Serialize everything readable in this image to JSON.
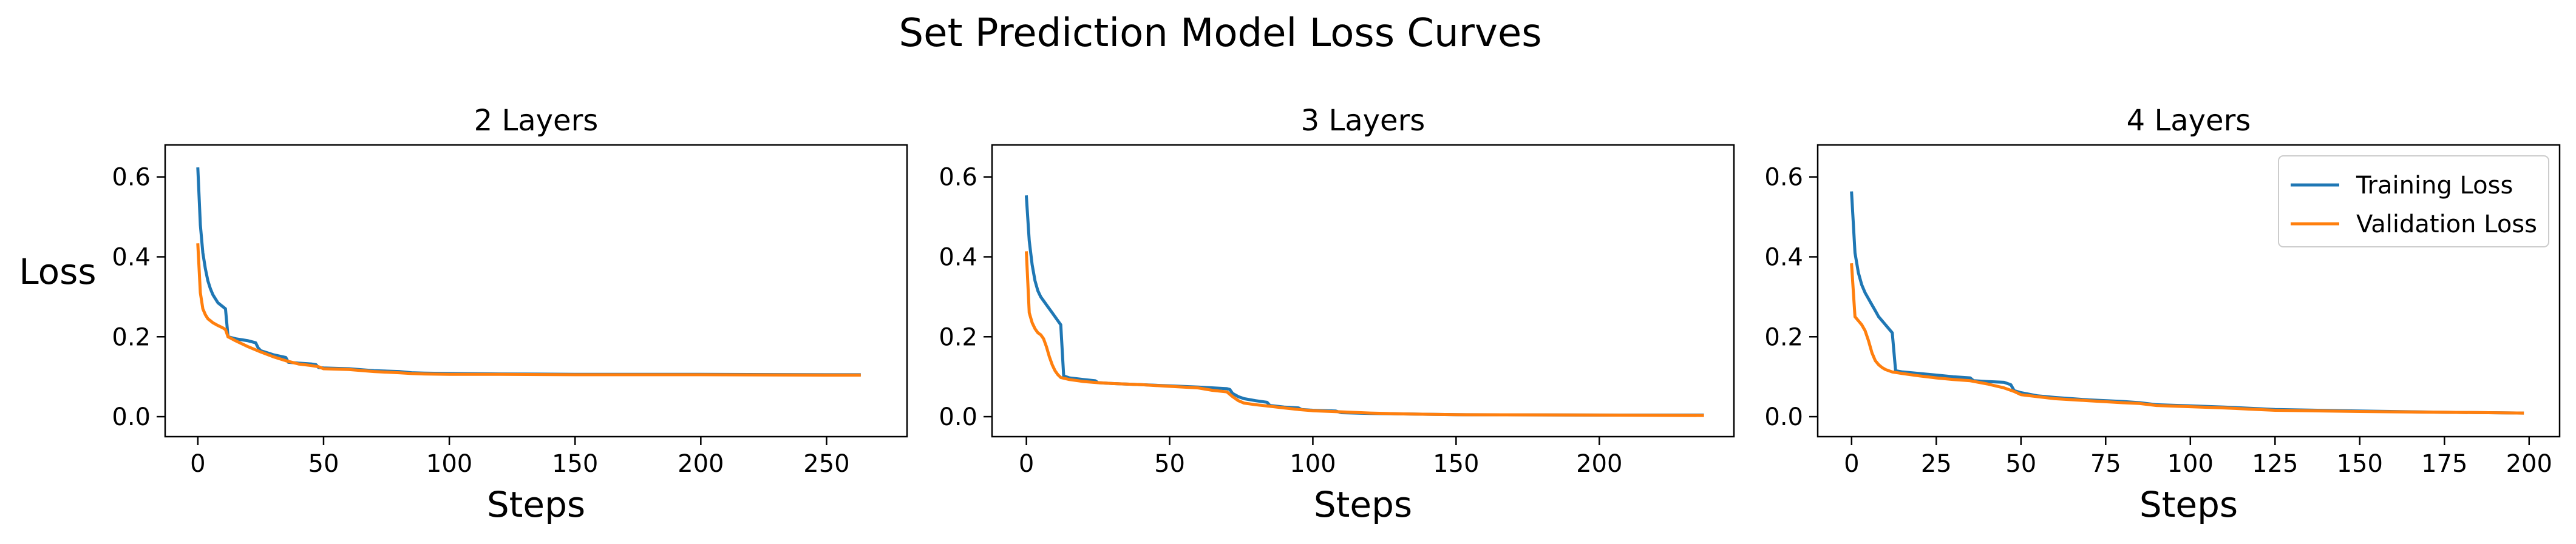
{
  "chart_data": {
    "title": "Set Prediction Model Loss Curves",
    "ylabel": "Loss",
    "series_colors": {
      "Training Loss": "#1f77b4",
      "Validation Loss": "#ff7f0e"
    },
    "legend": {
      "placement": "top-right",
      "panel": 2,
      "entries": [
        "Training Loss",
        "Validation Loss"
      ]
    },
    "panels": [
      {
        "type": "line",
        "title": "2 Layers",
        "xlabel": "Steps",
        "xlim": [
          -13,
          282
        ],
        "ylim": [
          -0.05,
          0.68
        ],
        "xticks": [
          0,
          50,
          100,
          150,
          200,
          250
        ],
        "yticks": [
          0.0,
          0.2,
          0.4,
          0.6
        ],
        "series": [
          {
            "name": "Training Loss",
            "x": [
              0,
              1,
              2,
              3,
              4,
              5,
              6,
              7,
              8,
              9,
              10,
              11,
              12,
              15,
              20,
              23,
              24,
              25,
              30,
              35,
              36,
              40,
              45,
              47,
              48,
              50,
              60,
              70,
              80,
              85,
              90,
              100,
              120,
              150,
              200,
              250,
              263
            ],
            "y": [
              0.62,
              0.48,
              0.41,
              0.37,
              0.34,
              0.32,
              0.305,
              0.295,
              0.285,
              0.28,
              0.275,
              0.27,
              0.2,
              0.195,
              0.19,
              0.185,
              0.172,
              0.165,
              0.155,
              0.148,
              0.136,
              0.134,
              0.132,
              0.13,
              0.123,
              0.122,
              0.12,
              0.115,
              0.113,
              0.11,
              0.109,
              0.108,
              0.107,
              0.106,
              0.106,
              0.105,
              0.105
            ]
          },
          {
            "name": "Validation Loss",
            "x": [
              0,
              1,
              2,
              3,
              4,
              5,
              6,
              8,
              10,
              11,
              12,
              15,
              20,
              25,
              30,
              35,
              40,
              45,
              48,
              50,
              60,
              70,
              80,
              85,
              90,
              100,
              120,
              150,
              200,
              250,
              263
            ],
            "y": [
              0.43,
              0.31,
              0.27,
              0.255,
              0.245,
              0.24,
              0.235,
              0.228,
              0.222,
              0.218,
              0.2,
              0.19,
              0.175,
              0.162,
              0.15,
              0.14,
              0.132,
              0.128,
              0.125,
              0.12,
              0.118,
              0.113,
              0.11,
              0.108,
              0.107,
              0.106,
              0.106,
              0.105,
              0.105,
              0.104,
              0.104
            ]
          }
        ]
      },
      {
        "type": "line",
        "title": "3 Layers",
        "xlabel": "Steps",
        "xlim": [
          -12,
          247
        ],
        "ylim": [
          -0.05,
          0.68
        ],
        "xticks": [
          0,
          50,
          100,
          150,
          200
        ],
        "yticks": [
          0.0,
          0.2,
          0.4,
          0.6
        ],
        "series": [
          {
            "name": "Training Loss",
            "x": [
              0,
              1,
              2,
              3,
              4,
              5,
              6,
              7,
              8,
              9,
              10,
              11,
              12,
              13,
              15,
              20,
              24,
              25,
              30,
              40,
              50,
              60,
              70,
              71,
              72,
              74,
              76,
              80,
              84,
              85,
              90,
              95,
              96,
              100,
              108,
              110,
              120,
              130,
              140,
              150,
              200,
              236
            ],
            "y": [
              0.55,
              0.44,
              0.38,
              0.34,
              0.315,
              0.3,
              0.29,
              0.28,
              0.27,
              0.26,
              0.25,
              0.24,
              0.23,
              0.102,
              0.097,
              0.093,
              0.09,
              0.085,
              0.083,
              0.08,
              0.077,
              0.074,
              0.07,
              0.068,
              0.058,
              0.05,
              0.045,
              0.04,
              0.036,
              0.028,
              0.024,
              0.022,
              0.018,
              0.016,
              0.014,
              0.01,
              0.008,
              0.007,
              0.006,
              0.005,
              0.004,
              0.004
            ]
          },
          {
            "name": "Validation Loss",
            "x": [
              0,
              1,
              2,
              3,
              4,
              5,
              6,
              7,
              8,
              9,
              10,
              11,
              12,
              15,
              20,
              25,
              30,
              40,
              50,
              60,
              65,
              70,
              72,
              74,
              76,
              80,
              85,
              90,
              95,
              100,
              110,
              120,
              130,
              140,
              150,
              200,
              236
            ],
            "y": [
              0.41,
              0.26,
              0.235,
              0.22,
              0.21,
              0.205,
              0.195,
              0.175,
              0.15,
              0.13,
              0.115,
              0.105,
              0.098,
              0.093,
              0.088,
              0.085,
              0.083,
              0.08,
              0.076,
              0.072,
              0.066,
              0.062,
              0.05,
              0.04,
              0.034,
              0.03,
              0.026,
              0.022,
              0.018,
              0.015,
              0.012,
              0.009,
              0.007,
              0.006,
              0.005,
              0.004,
              0.003
            ]
          }
        ]
      },
      {
        "type": "line",
        "title": "4 Layers",
        "xlabel": "Steps",
        "xlim": [
          -10,
          209
        ],
        "ylim": [
          -0.05,
          0.68
        ],
        "xticks": [
          0,
          25,
          50,
          75,
          100,
          125,
          150,
          175,
          200
        ],
        "yticks": [
          0.0,
          0.2,
          0.4,
          0.6
        ],
        "series": [
          {
            "name": "Training Loss",
            "x": [
              0,
              1,
              2,
              3,
              4,
              5,
              6,
              7,
              8,
              9,
              10,
              11,
              12,
              13,
              15,
              20,
              25,
              30,
              35,
              36,
              40,
              45,
              47,
              48,
              50,
              55,
              60,
              70,
              80,
              85,
              90,
              100,
              110,
              120,
              125,
              150,
              175,
              198
            ],
            "y": [
              0.56,
              0.41,
              0.36,
              0.33,
              0.31,
              0.295,
              0.28,
              0.265,
              0.25,
              0.24,
              0.23,
              0.22,
              0.21,
              0.115,
              0.112,
              0.108,
              0.104,
              0.1,
              0.097,
              0.09,
              0.088,
              0.086,
              0.08,
              0.065,
              0.06,
              0.052,
              0.048,
              0.042,
              0.038,
              0.035,
              0.03,
              0.027,
              0.024,
              0.02,
              0.018,
              0.014,
              0.011,
              0.009
            ]
          },
          {
            "name": "Validation Loss",
            "x": [
              0,
              1,
              2,
              3,
              4,
              5,
              6,
              7,
              8,
              9,
              10,
              11,
              12,
              15,
              20,
              25,
              30,
              35,
              40,
              45,
              48,
              50,
              55,
              60,
              70,
              80,
              85,
              90,
              100,
              110,
              120,
              125,
              150,
              175,
              198
            ],
            "y": [
              0.38,
              0.25,
              0.24,
              0.23,
              0.215,
              0.19,
              0.16,
              0.14,
              0.13,
              0.123,
              0.118,
              0.115,
              0.112,
              0.108,
              0.102,
              0.097,
              0.093,
              0.09,
              0.082,
              0.072,
              0.063,
              0.055,
              0.05,
              0.045,
              0.04,
              0.035,
              0.033,
              0.028,
              0.025,
              0.022,
              0.018,
              0.016,
              0.013,
              0.011,
              0.009
            ]
          }
        ]
      }
    ]
  }
}
